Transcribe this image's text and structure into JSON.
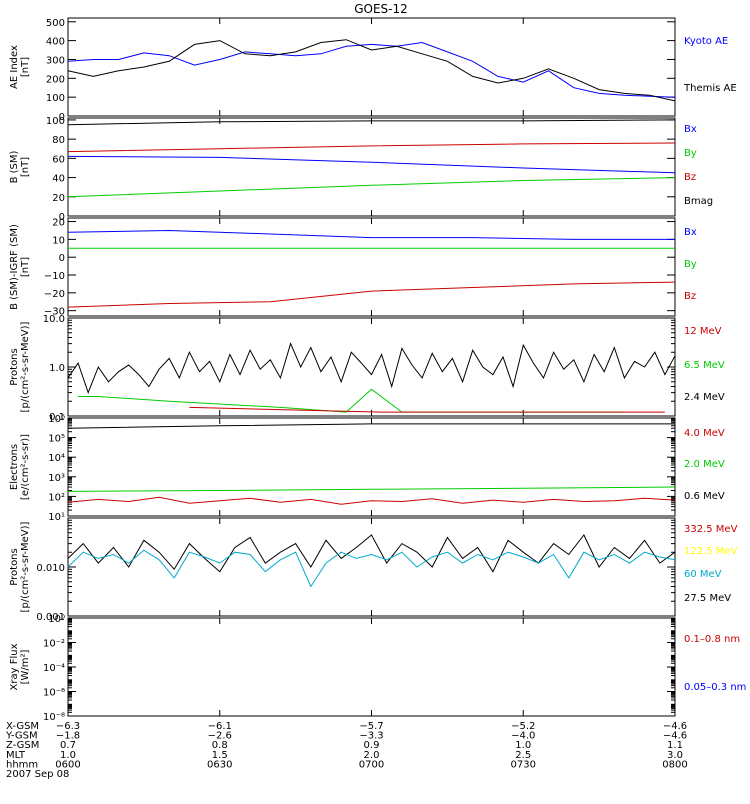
{
  "title": "GOES-12",
  "panels": [
    {
      "id": "ae",
      "ylabel": [
        "AE Index",
        "[nT]"
      ],
      "scale": "linear",
      "ylim": [
        0,
        520
      ],
      "ticks": [
        0,
        100,
        200,
        300,
        400,
        500
      ],
      "tick_labels": [
        "0",
        "100",
        "200",
        "300",
        "400",
        "500"
      ],
      "legend": [
        {
          "label": "Kyoto AE",
          "color": "#0000ff"
        },
        {
          "label": "Themis AE",
          "color": "#000000"
        }
      ],
      "series": [
        {
          "name": "Kyoto AE",
          "color": "#0000ff",
          "x": [
            0,
            5,
            10,
            15,
            20,
            25,
            30,
            35,
            40,
            45,
            50,
            55,
            60,
            65,
            70,
            75,
            80,
            85,
            90,
            95,
            100,
            105,
            110,
            115,
            120
          ],
          "y": [
            290,
            300,
            300,
            335,
            320,
            270,
            300,
            340,
            330,
            320,
            330,
            370,
            380,
            370,
            390,
            340,
            290,
            210,
            180,
            240,
            150,
            120,
            110,
            105,
            100
          ]
        },
        {
          "name": "Themis AE",
          "color": "#000000",
          "x": [
            0,
            5,
            10,
            15,
            20,
            25,
            30,
            35,
            40,
            45,
            50,
            55,
            60,
            65,
            70,
            75,
            80,
            85,
            90,
            95,
            100,
            105,
            110,
            115,
            120
          ],
          "y": [
            240,
            210,
            240,
            260,
            290,
            380,
            400,
            330,
            320,
            340,
            390,
            405,
            350,
            370,
            330,
            290,
            210,
            175,
            200,
            250,
            200,
            140,
            120,
            110,
            80
          ]
        }
      ]
    },
    {
      "id": "bsm",
      "ylabel": [
        "B (SM)",
        "[nT]"
      ],
      "scale": "linear",
      "ylim": [
        0,
        102
      ],
      "ticks": [
        0,
        20,
        40,
        60,
        80,
        100
      ],
      "tick_labels": [
        "0",
        "20",
        "40",
        "60",
        "80",
        "100"
      ],
      "legend": [
        {
          "label": "Bx",
          "color": "#0000ff"
        },
        {
          "label": "By",
          "color": "#00cc00"
        },
        {
          "label": "Bz",
          "color": "#cc0000"
        },
        {
          "label": "Bmag",
          "color": "#000000"
        }
      ],
      "series": [
        {
          "name": "Bx",
          "color": "#0000ff",
          "x": [
            0,
            30,
            60,
            90,
            120
          ],
          "y": [
            62,
            61,
            56,
            50,
            45
          ]
        },
        {
          "name": "By",
          "color": "#00cc00",
          "x": [
            0,
            30,
            60,
            90,
            120
          ],
          "y": [
            20,
            26,
            32,
            37,
            40
          ]
        },
        {
          "name": "Bz",
          "color": "#cc0000",
          "x": [
            0,
            30,
            60,
            90,
            120
          ],
          "y": [
            67,
            70,
            73,
            75,
            76
          ]
        },
        {
          "name": "Bmag",
          "color": "#000000",
          "x": [
            0,
            30,
            60,
            90,
            120
          ],
          "y": [
            95,
            98,
            99,
            99,
            100
          ]
        }
      ]
    },
    {
      "id": "bigrf",
      "ylabel": [
        "B (SM)-IGRF (SM)",
        "[nT]"
      ],
      "scale": "linear",
      "ylim": [
        -33,
        22
      ],
      "ticks": [
        -30,
        -20,
        -10,
        0,
        10,
        20
      ],
      "tick_labels": [
        "−30",
        "−20",
        "−10",
        "0",
        "10",
        "20"
      ],
      "legend": [
        {
          "label": "Bx",
          "color": "#0000ff"
        },
        {
          "label": "By",
          "color": "#00cc00"
        },
        {
          "label": "Bz",
          "color": "#cc0000"
        }
      ],
      "series": [
        {
          "name": "Bx",
          "color": "#0000ff",
          "x": [
            0,
            20,
            40,
            60,
            80,
            100,
            120
          ],
          "y": [
            14,
            15,
            13,
            11,
            11,
            10,
            10
          ]
        },
        {
          "name": "By",
          "color": "#00cc00",
          "x": [
            0,
            20,
            40,
            60,
            80,
            100,
            120
          ],
          "y": [
            5,
            5,
            5,
            5,
            5,
            5,
            5
          ]
        },
        {
          "name": "Bz",
          "color": "#cc0000",
          "x": [
            0,
            20,
            40,
            60,
            80,
            100,
            120
          ],
          "y": [
            -28,
            -26,
            -25,
            -19,
            -17,
            -15,
            -14
          ]
        }
      ]
    },
    {
      "id": "protons_high",
      "ylabel": [
        "Protons",
        "[p/(cm²-s-sr-MeV)]"
      ],
      "scale": "log",
      "ylim": [
        0.1,
        10.0
      ],
      "ticks": [
        0.1,
        1.0,
        10.0
      ],
      "tick_labels": [
        "0.1",
        "1.0",
        "10.0"
      ],
      "legend": [
        {
          "label": "12 MeV",
          "color": "#cc0000"
        },
        {
          "label": "6.5 MeV",
          "color": "#00cc00"
        },
        {
          "label": "2.4 MeV",
          "color": "#000000"
        }
      ],
      "series": [
        {
          "name": "2.4 MeV",
          "color": "#000000",
          "x": [
            0,
            2,
            4,
            6,
            8,
            10,
            12,
            14,
            16,
            18,
            20,
            22,
            24,
            26,
            28,
            30,
            32,
            34,
            36,
            38,
            40,
            42,
            44,
            46,
            48,
            50,
            52,
            54,
            56,
            58,
            60,
            62,
            64,
            66,
            68,
            70,
            72,
            74,
            76,
            78,
            80,
            82,
            84,
            86,
            88,
            90,
            92,
            94,
            96,
            98,
            100,
            102,
            104,
            106,
            108,
            110,
            112,
            114,
            116,
            118,
            120
          ],
          "y": [
            0.6,
            1.2,
            0.3,
            1.0,
            0.5,
            0.8,
            1.1,
            0.7,
            0.4,
            0.9,
            1.5,
            0.6,
            2.0,
            0.8,
            1.3,
            0.5,
            1.8,
            0.7,
            2.2,
            0.9,
            1.4,
            0.6,
            3.0,
            1.0,
            2.5,
            0.8,
            1.6,
            0.5,
            2.0,
            1.2,
            0.7,
            1.8,
            0.4,
            2.4,
            1.1,
            0.6,
            1.9,
            0.8,
            1.5,
            0.5,
            2.2,
            1.0,
            0.7,
            1.6,
            0.4,
            2.8,
            1.2,
            0.6,
            2.0,
            0.9,
            1.4,
            0.5,
            1.8,
            0.8,
            2.5,
            0.6,
            1.3,
            1.0,
            2.0,
            0.7,
            1.7
          ]
        },
        {
          "name": "6.5 MeV",
          "color": "#00cc00",
          "x": [
            2,
            6,
            20,
            42,
            55,
            60,
            66,
            72,
            78,
            84,
            90,
            100,
            110
          ],
          "y": [
            0.25,
            0.25,
            0.2,
            0.15,
            0.12,
            0.35,
            0.12,
            0.12,
            0.12,
            0.12,
            0.12,
            0.12,
            0.12
          ]
        },
        {
          "name": "12 MeV",
          "color": "#cc0000",
          "x": [
            24,
            62,
            76,
            92,
            104,
            112,
            118
          ],
          "y": [
            0.15,
            0.12,
            0.12,
            0.12,
            0.12,
            0.12,
            0.12
          ]
        }
      ]
    },
    {
      "id": "electrons",
      "ylabel": [
        "Electrons",
        "[e/(cm²-s-sr)]"
      ],
      "scale": "log",
      "ylim": [
        10,
        1000000
      ],
      "ticks": [
        10,
        100,
        1000,
        10000,
        100000,
        1000000
      ],
      "tick_labels": [
        "10¹",
        "10²",
        "10³",
        "10⁴",
        "10⁵",
        "10⁶"
      ],
      "legend": [
        {
          "label": "4.0 MeV",
          "color": "#cc0000"
        },
        {
          "label": "2.0 MeV",
          "color": "#00cc00"
        },
        {
          "label": "0.6 MeV",
          "color": "#000000"
        }
      ],
      "series": [
        {
          "name": "0.6 MeV",
          "color": "#000000",
          "x": [
            0,
            30,
            60,
            90,
            120
          ],
          "y": [
            300000,
            400000,
            500000,
            500000,
            500000
          ]
        },
        {
          "name": "2.0 MeV",
          "color": "#00cc00",
          "x": [
            0,
            30,
            60,
            90,
            120
          ],
          "y": [
            180,
            200,
            230,
            260,
            300
          ]
        },
        {
          "name": "4.0 MeV",
          "color": "#cc0000",
          "x": [
            0,
            6,
            12,
            18,
            24,
            30,
            36,
            42,
            48,
            54,
            60,
            66,
            72,
            78,
            84,
            90,
            96,
            102,
            108,
            114,
            120
          ],
          "y": [
            50,
            70,
            55,
            90,
            45,
            60,
            80,
            50,
            70,
            40,
            60,
            55,
            75,
            45,
            65,
            50,
            70,
            55,
            60,
            80,
            65
          ]
        }
      ]
    },
    {
      "id": "protons_low",
      "ylabel": [
        "Protons",
        "[p/(cm²-s-sr-MeV)]"
      ],
      "scale": "log",
      "ylim": [
        0.001,
        0.1
      ],
      "ticks": [
        0.001,
        0.01,
        0.1
      ],
      "tick_labels": [
        "0.001",
        "0.010",
        ""
      ],
      "legend": [
        {
          "label": "332.5 MeV",
          "color": "#cc0000"
        },
        {
          "label": "122.5 MeV",
          "color": "#ffff00"
        },
        {
          "label": "60 MeV",
          "color": "#00aacc"
        },
        {
          "label": "27.5 MeV",
          "color": "#000000"
        }
      ],
      "series": [
        {
          "name": "27.5 MeV",
          "color": "#000000",
          "x": [
            0,
            3,
            6,
            9,
            12,
            15,
            18,
            21,
            24,
            27,
            30,
            33,
            36,
            39,
            42,
            45,
            48,
            51,
            54,
            57,
            60,
            63,
            66,
            69,
            72,
            75,
            78,
            81,
            84,
            87,
            90,
            93,
            96,
            99,
            102,
            105,
            108,
            111,
            114,
            117,
            120
          ],
          "y": [
            0.015,
            0.03,
            0.012,
            0.025,
            0.01,
            0.035,
            0.02,
            0.009,
            0.03,
            0.015,
            0.008,
            0.025,
            0.04,
            0.012,
            0.02,
            0.03,
            0.01,
            0.035,
            0.015,
            0.025,
            0.045,
            0.012,
            0.03,
            0.02,
            0.01,
            0.04,
            0.015,
            0.025,
            0.008,
            0.035,
            0.02,
            0.012,
            0.03,
            0.018,
            0.045,
            0.01,
            0.025,
            0.015,
            0.035,
            0.012,
            0.02
          ]
        },
        {
          "name": "60 MeV",
          "color": "#00aacc",
          "x": [
            0,
            3,
            6,
            9,
            12,
            15,
            18,
            21,
            24,
            27,
            30,
            33,
            36,
            39,
            42,
            45,
            48,
            51,
            54,
            57,
            60,
            63,
            66,
            69,
            72,
            75,
            78,
            81,
            84,
            87,
            90,
            93,
            96,
            99,
            102,
            105,
            108,
            111,
            114,
            117,
            120
          ],
          "y": [
            0.01,
            0.02,
            0.015,
            0.018,
            0.012,
            0.022,
            0.014,
            0.006,
            0.02,
            0.016,
            0.012,
            0.02,
            0.018,
            0.008,
            0.014,
            0.02,
            0.004,
            0.012,
            0.02,
            0.015,
            0.018,
            0.014,
            0.02,
            0.01,
            0.016,
            0.02,
            0.012,
            0.018,
            0.014,
            0.02,
            0.016,
            0.012,
            0.018,
            0.006,
            0.02,
            0.014,
            0.018,
            0.012,
            0.02,
            0.016,
            0.014
          ]
        }
      ]
    },
    {
      "id": "xray",
      "ylabel": [
        "Xray Flux",
        "[W/m²]"
      ],
      "scale": "log",
      "ylim": [
        1e-08,
        1
      ],
      "ticks": [
        1e-08,
        1e-06,
        0.0001,
        0.01,
        1
      ],
      "tick_labels": [
        "10⁻⁸",
        "10⁻⁶",
        "10⁻⁴",
        "10⁻²",
        "10⁰"
      ],
      "legend": [
        {
          "label": "0.1–0.8 nm",
          "color": "#cc0000"
        },
        {
          "label": "0.05–0.3 nm",
          "color": "#0000ff"
        }
      ],
      "series": []
    }
  ],
  "x_axis": {
    "xlim": [
      0,
      120
    ],
    "tick_positions": [
      0,
      30,
      60,
      90,
      120
    ],
    "rows": [
      {
        "label": "X-GSM",
        "values": [
          "−6.3",
          "−6.1",
          "−5.7",
          "−5.2",
          "−4.6"
        ]
      },
      {
        "label": "Y-GSM",
        "values": [
          "−1.8",
          "−2.6",
          "−3.3",
          "−4.0",
          "−4.6"
        ]
      },
      {
        "label": "Z-GSM",
        "values": [
          "0.7",
          "0.8",
          "0.9",
          "1.0",
          "1.1"
        ]
      },
      {
        "label": "MLT",
        "values": [
          "1.0",
          "1.5",
          "2.0",
          "2.5",
          "3.0"
        ]
      },
      {
        "label": "hhmm",
        "values": [
          "0600",
          "0630",
          "0700",
          "0730",
          "0800"
        ]
      }
    ],
    "date": "2007 Sep 08"
  },
  "chart_data": {
    "type": "line",
    "title": "GOES-12",
    "xlabel": "",
    "x_units": "minutes after 0600 UT",
    "xlim": [
      0,
      120
    ],
    "panels": [
      "ae",
      "bsm",
      "bigrf",
      "protons_high",
      "electrons",
      "protons_low",
      "xray"
    ]
  }
}
